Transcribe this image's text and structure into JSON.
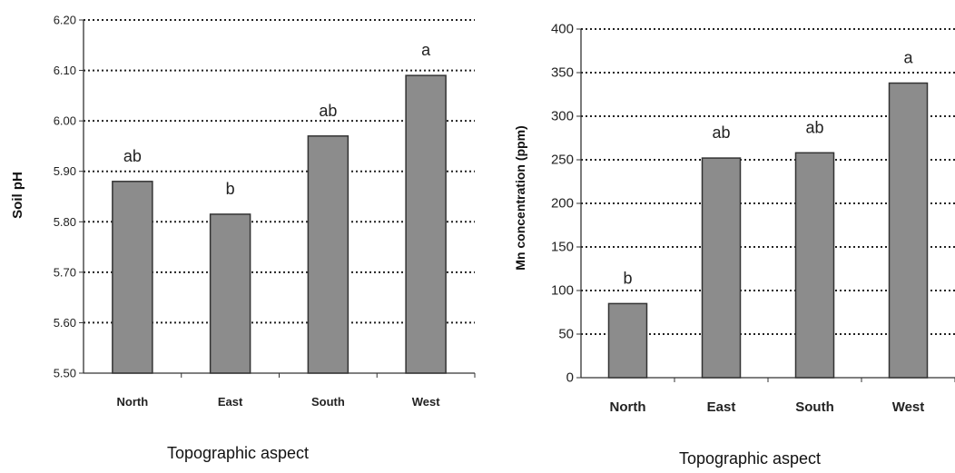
{
  "chart_data": [
    {
      "type": "bar",
      "categories": [
        "North",
        "East",
        "South",
        "West"
      ],
      "values": [
        5.88,
        5.815,
        5.97,
        6.09
      ],
      "bar_labels": [
        "ab",
        "b",
        "ab",
        "a"
      ],
      "xlabel": "Topographic aspect",
      "ylabel": "Soil pH",
      "ylim": [
        5.5,
        6.2
      ],
      "yticks": [
        "5.50",
        "5.60",
        "5.70",
        "5.80",
        "5.90",
        "6.00",
        "6.10",
        "6.20"
      ],
      "grid": "dotted horizontal",
      "bar_color": "#8c8c8c"
    },
    {
      "type": "bar",
      "categories": [
        "North",
        "East",
        "South",
        "West"
      ],
      "values": [
        85,
        252,
        258,
        338
      ],
      "bar_labels": [
        "b",
        "ab",
        "ab",
        "a"
      ],
      "xlabel": "Topographic aspect",
      "ylabel": "Mn concentration (ppm)",
      "ylim": [
        0,
        400
      ],
      "yticks": [
        "0",
        "50",
        "100",
        "150",
        "200",
        "250",
        "300",
        "350",
        "400"
      ],
      "grid": "dotted horizontal",
      "bar_color": "#8c8c8c"
    }
  ]
}
